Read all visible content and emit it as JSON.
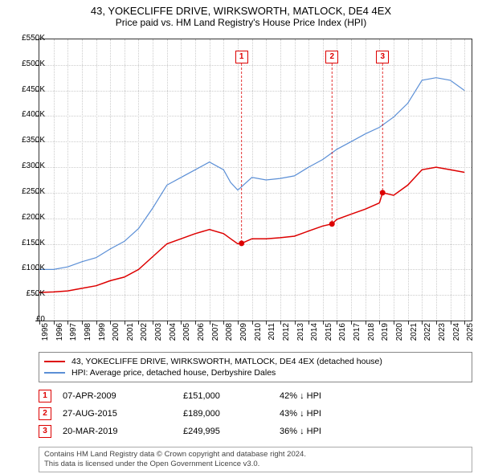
{
  "title": "43, YOKECLIFFE DRIVE, WIRKSWORTH, MATLOCK, DE4 4EX",
  "subtitle": "Price paid vs. HM Land Registry's House Price Index (HPI)",
  "chart": {
    "type": "line",
    "x_start": 1995,
    "x_end": 2025.5,
    "x_ticks": [
      1995,
      1996,
      1997,
      1998,
      1999,
      2000,
      2001,
      2002,
      2003,
      2004,
      2005,
      2006,
      2007,
      2008,
      2009,
      2010,
      2011,
      2012,
      2013,
      2014,
      2015,
      2016,
      2017,
      2018,
      2019,
      2020,
      2021,
      2022,
      2023,
      2024,
      2025
    ],
    "y_min": 0,
    "y_max": 550000,
    "y_ticks": [
      0,
      50000,
      100000,
      150000,
      200000,
      250000,
      300000,
      350000,
      400000,
      450000,
      500000,
      550000
    ],
    "y_tick_labels": [
      "£0",
      "£50K",
      "£100K",
      "£150K",
      "£200K",
      "£250K",
      "£300K",
      "£350K",
      "£400K",
      "£450K",
      "£500K",
      "£550K"
    ],
    "grid_color": "#cccccc",
    "border_color": "#333333",
    "background": "#ffffff",
    "series": [
      {
        "name": "price_paid",
        "label": "43, YOKECLIFFE DRIVE, WIRKSWORTH, MATLOCK, DE4 4EX (detached house)",
        "color": "#dd0000",
        "line_width": 1.5,
        "points": [
          [
            1995,
            55000
          ],
          [
            1996,
            56000
          ],
          [
            1997,
            58000
          ],
          [
            1998,
            63000
          ],
          [
            1999,
            68000
          ],
          [
            2000,
            78000
          ],
          [
            2001,
            85000
          ],
          [
            2002,
            100000
          ],
          [
            2003,
            125000
          ],
          [
            2004,
            150000
          ],
          [
            2005,
            160000
          ],
          [
            2006,
            170000
          ],
          [
            2007,
            178000
          ],
          [
            2008,
            170000
          ],
          [
            2008.5,
            160000
          ],
          [
            2009,
            150000
          ],
          [
            2009.27,
            151000
          ],
          [
            2010,
            160000
          ],
          [
            2011,
            160000
          ],
          [
            2012,
            162000
          ],
          [
            2013,
            165000
          ],
          [
            2014,
            175000
          ],
          [
            2015,
            185000
          ],
          [
            2015.65,
            189000
          ],
          [
            2016,
            198000
          ],
          [
            2017,
            208000
          ],
          [
            2018,
            218000
          ],
          [
            2019,
            230000
          ],
          [
            2019.22,
            249995
          ],
          [
            2020,
            245000
          ],
          [
            2021,
            265000
          ],
          [
            2022,
            295000
          ],
          [
            2023,
            300000
          ],
          [
            2024,
            295000
          ],
          [
            2025,
            290000
          ]
        ]
      },
      {
        "name": "hpi",
        "label": "HPI: Average price, detached house, Derbyshire Dales",
        "color": "#5b8fd6",
        "line_width": 1.2,
        "points": [
          [
            1995,
            100000
          ],
          [
            1996,
            100000
          ],
          [
            1997,
            105000
          ],
          [
            1998,
            115000
          ],
          [
            1999,
            123000
          ],
          [
            2000,
            140000
          ],
          [
            2001,
            155000
          ],
          [
            2002,
            180000
          ],
          [
            2003,
            220000
          ],
          [
            2004,
            265000
          ],
          [
            2005,
            280000
          ],
          [
            2006,
            295000
          ],
          [
            2007,
            310000
          ],
          [
            2008,
            295000
          ],
          [
            2008.5,
            270000
          ],
          [
            2009,
            255000
          ],
          [
            2010,
            280000
          ],
          [
            2011,
            275000
          ],
          [
            2012,
            278000
          ],
          [
            2013,
            283000
          ],
          [
            2014,
            300000
          ],
          [
            2015,
            315000
          ],
          [
            2016,
            335000
          ],
          [
            2017,
            350000
          ],
          [
            2018,
            365000
          ],
          [
            2019,
            378000
          ],
          [
            2020,
            398000
          ],
          [
            2021,
            425000
          ],
          [
            2022,
            470000
          ],
          [
            2023,
            475000
          ],
          [
            2024,
            470000
          ],
          [
            2025,
            450000
          ]
        ]
      }
    ],
    "sale_markers": [
      {
        "num": "1",
        "year": 2009.27,
        "price": 151000
      },
      {
        "num": "2",
        "year": 2015.65,
        "price": 189000
      },
      {
        "num": "3",
        "year": 2019.22,
        "price": 249995
      }
    ],
    "marker_box_color": "#dd0000",
    "marker_top_offset": 14
  },
  "legend": {
    "border_color": "#888888",
    "items": [
      {
        "color": "#dd0000",
        "label": "43, YOKECLIFFE DRIVE, WIRKSWORTH, MATLOCK, DE4 4EX (detached house)"
      },
      {
        "color": "#5b8fd6",
        "label": "HPI: Average price, detached house, Derbyshire Dales"
      }
    ]
  },
  "sales": [
    {
      "num": "1",
      "date": "07-APR-2009",
      "price": "£151,000",
      "pct": "42% ↓ HPI"
    },
    {
      "num": "2",
      "date": "27-AUG-2015",
      "price": "£189,000",
      "pct": "43% ↓ HPI"
    },
    {
      "num": "3",
      "date": "20-MAR-2019",
      "price": "£249,995",
      "pct": "36% ↓ HPI"
    }
  ],
  "footer": {
    "line1": "Contains HM Land Registry data © Crown copyright and database right 2024.",
    "line2": "This data is licensed under the Open Government Licence v3.0."
  },
  "fonts": {
    "title_size": 13,
    "subtitle_size": 12,
    "axis_size": 10,
    "legend_size": 10.5,
    "table_size": 11,
    "footer_size": 9.5
  }
}
